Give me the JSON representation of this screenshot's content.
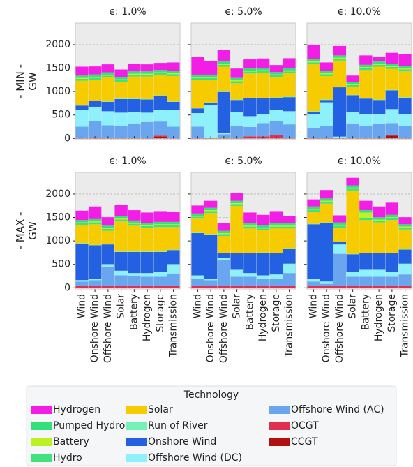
{
  "chart_data": {
    "type": "bar",
    "stacked": true,
    "categories": [
      "Wind",
      "Onshore Wind",
      "Offshore Wind",
      "Solar",
      "Battery",
      "Hydrogen",
      "Storage",
      "Transmission"
    ],
    "ylim": [
      -25,
      2460
    ],
    "yticks": [
      0,
      500,
      1000,
      1500,
      2000
    ],
    "grid": true,
    "legend_title": "Technology",
    "series": [
      {
        "name": "CCGT",
        "color": "#b01010"
      },
      {
        "name": "OCGT",
        "color": "#e0304f"
      },
      {
        "name": "Offshore Wind (AC)",
        "color": "#6aa6ef"
      },
      {
        "name": "Offshore Wind (DC)",
        "color": "#8ef0fb"
      },
      {
        "name": "Onshore Wind",
        "color": "#2360e2"
      },
      {
        "name": "Run of River",
        "color": "#72f2b6"
      },
      {
        "name": "Solar",
        "color": "#f6cc00"
      },
      {
        "name": "Hydro",
        "color": "#3fe27c"
      },
      {
        "name": "Battery",
        "color": "#bcf225"
      },
      {
        "name": "Pumped Hydro",
        "color": "#35e07a"
      },
      {
        "name": "Hydrogen",
        "color": "#f21ee6"
      }
    ],
    "panels": [
      {
        "title": "ϵ: 1.0%",
        "ylabel": [
          "- MIN -",
          "GW"
        ],
        "values": [
          [
            5,
            5,
            5,
            5,
            5,
            5,
            40,
            5
          ],
          [
            15,
            20,
            15,
            15,
            15,
            15,
            20,
            15
          ],
          [
            230,
            350,
            260,
            250,
            300,
            330,
            300,
            230
          ],
          [
            350,
            300,
            300,
            280,
            250,
            200,
            250,
            350
          ],
          [
            100,
            120,
            200,
            290,
            270,
            280,
            300,
            180
          ],
          [
            10,
            10,
            10,
            10,
            10,
            10,
            10,
            10
          ],
          [
            520,
            450,
            510,
            350,
            470,
            480,
            430,
            540
          ],
          [
            40,
            40,
            40,
            40,
            40,
            40,
            40,
            40
          ],
          [
            20,
            20,
            20,
            20,
            20,
            20,
            20,
            20
          ],
          [
            50,
            50,
            50,
            50,
            50,
            50,
            50,
            50
          ],
          [
            190,
            170,
            170,
            160,
            160,
            150,
            150,
            180
          ]
        ]
      },
      {
        "title": "ϵ: 5.0%",
        "values": [
          [
            5,
            5,
            5,
            5,
            5,
            5,
            5,
            5
          ],
          [
            15,
            15,
            15,
            15,
            40,
            40,
            60,
            15
          ],
          [
            230,
            0,
            70,
            250,
            200,
            280,
            300,
            280
          ],
          [
            290,
            690,
            20,
            300,
            230,
            200,
            250,
            280
          ],
          [
            100,
            50,
            880,
            250,
            380,
            330,
            250,
            300
          ],
          [
            10,
            10,
            10,
            10,
            10,
            10,
            10,
            10
          ],
          [
            600,
            480,
            530,
            350,
            520,
            530,
            430,
            500
          ],
          [
            40,
            40,
            40,
            40,
            40,
            40,
            40,
            40
          ],
          [
            20,
            20,
            20,
            20,
            20,
            20,
            20,
            20
          ],
          [
            50,
            50,
            50,
            50,
            50,
            50,
            50,
            50
          ],
          [
            380,
            290,
            250,
            200,
            190,
            200,
            150,
            210
          ]
        ]
      },
      {
        "title": "ϵ: 10.0%",
        "values": [
          [
            5,
            5,
            5,
            5,
            5,
            5,
            60,
            5
          ],
          [
            15,
            15,
            15,
            15,
            15,
            15,
            15,
            15
          ],
          [
            200,
            250,
            0,
            300,
            250,
            300,
            250,
            250
          ],
          [
            300,
            500,
            20,
            250,
            250,
            200,
            300,
            250
          ],
          [
            50,
            50,
            1050,
            350,
            330,
            300,
            400,
            350
          ],
          [
            10,
            10,
            10,
            10,
            10,
            10,
            10,
            10
          ],
          [
            1000,
            500,
            560,
            170,
            600,
            700,
            450,
            550
          ],
          [
            40,
            40,
            40,
            40,
            40,
            40,
            40,
            40
          ],
          [
            20,
            20,
            20,
            20,
            20,
            20,
            20,
            20
          ],
          [
            50,
            50,
            50,
            50,
            50,
            50,
            50,
            50
          ],
          [
            300,
            180,
            200,
            130,
            200,
            100,
            230,
            260
          ]
        ]
      },
      {
        "title": "ϵ: 1.0%",
        "ylabel": [
          "- MAX -",
          "GW"
        ],
        "values": [
          [
            5,
            5,
            5,
            5,
            5,
            5,
            5,
            5
          ],
          [
            30,
            30,
            30,
            30,
            30,
            30,
            30,
            30
          ],
          [
            100,
            130,
            420,
            230,
            220,
            200,
            200,
            270
          ],
          [
            30,
            20,
            50,
            100,
            60,
            80,
            100,
            200
          ],
          [
            780,
            720,
            420,
            400,
            450,
            450,
            430,
            300
          ],
          [
            10,
            10,
            10,
            10,
            10,
            10,
            10,
            10
          ],
          [
            380,
            440,
            280,
            640,
            550,
            500,
            520,
            480
          ],
          [
            40,
            40,
            40,
            40,
            40,
            40,
            40,
            40
          ],
          [
            20,
            20,
            20,
            20,
            20,
            20,
            20,
            20
          ],
          [
            50,
            50,
            50,
            50,
            50,
            50,
            50,
            50
          ],
          [
            200,
            270,
            180,
            250,
            220,
            220,
            230,
            210
          ]
        ]
      },
      {
        "title": "ϵ: 5.0%",
        "values": [
          [
            5,
            5,
            5,
            5,
            5,
            5,
            5,
            5
          ],
          [
            30,
            30,
            30,
            30,
            30,
            30,
            30,
            30
          ],
          [
            150,
            130,
            550,
            200,
            200,
            150,
            150,
            280
          ],
          [
            80,
            20,
            50,
            150,
            80,
            80,
            100,
            200
          ],
          [
            900,
            950,
            100,
            350,
            420,
            480,
            450,
            320
          ],
          [
            10,
            10,
            10,
            10,
            10,
            10,
            10,
            10
          ],
          [
            300,
            450,
            360,
            1000,
            520,
            470,
            520,
            420
          ],
          [
            40,
            40,
            40,
            40,
            40,
            40,
            40,
            40
          ],
          [
            20,
            20,
            20,
            20,
            20,
            20,
            20,
            20
          ],
          [
            50,
            50,
            50,
            50,
            50,
            50,
            50,
            50
          ],
          [
            170,
            150,
            160,
            170,
            230,
            220,
            260,
            150
          ]
        ]
      },
      {
        "title": "ϵ: 10.0%",
        "values": [
          [
            5,
            5,
            5,
            5,
            5,
            5,
            5,
            5
          ],
          [
            30,
            30,
            30,
            30,
            30,
            30,
            30,
            30
          ],
          [
            100,
            50,
            690,
            200,
            200,
            200,
            200,
            250
          ],
          [
            50,
            50,
            200,
            100,
            150,
            150,
            100,
            230
          ],
          [
            1170,
            1250,
            50,
            380,
            350,
            350,
            400,
            300
          ],
          [
            10,
            10,
            10,
            10,
            10,
            10,
            10,
            10
          ],
          [
            260,
            400,
            300,
            1350,
            700,
            650,
            700,
            420
          ],
          [
            40,
            40,
            40,
            40,
            40,
            40,
            40,
            40
          ],
          [
            20,
            20,
            20,
            20,
            120,
            20,
            20,
            20
          ],
          [
            50,
            50,
            50,
            50,
            50,
            50,
            50,
            50
          ],
          [
            150,
            180,
            150,
            160,
            200,
            230,
            260,
            150
          ]
        ]
      }
    ]
  }
}
